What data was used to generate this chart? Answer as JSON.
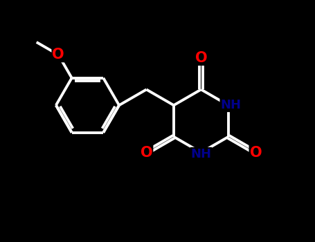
{
  "background_color": "#000000",
  "bond_color": "white",
  "bond_width": 2.8,
  "atom_colors": {
    "O": "#ff0000",
    "N": "#00008b",
    "C": "white"
  },
  "font_size_atom": 13,
  "font_size_H": 12,
  "figure_bg": "#000000",
  "xlim": [
    0.0,
    9.5
  ],
  "ylim": [
    0.5,
    8.5
  ]
}
